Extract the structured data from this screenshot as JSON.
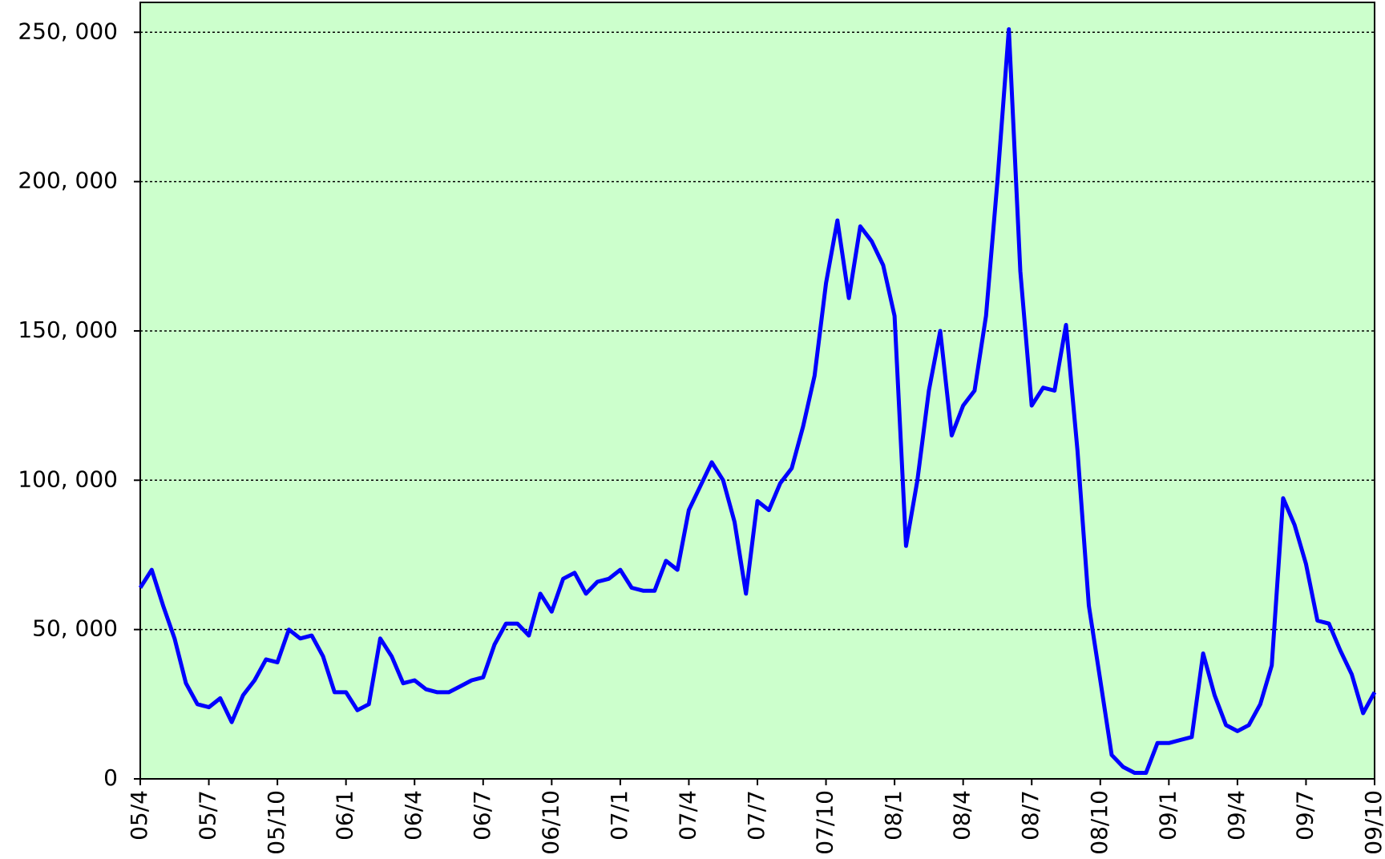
{
  "chart_data": {
    "type": "line",
    "categories": [
      "05/4",
      null,
      null,
      null,
      null,
      null,
      "05/7",
      null,
      null,
      null,
      null,
      null,
      "05/10",
      null,
      null,
      null,
      null,
      null,
      "06/1",
      null,
      null,
      null,
      null,
      null,
      "06/4",
      null,
      null,
      null,
      null,
      null,
      "06/7",
      null,
      null,
      null,
      null,
      null,
      "06/10",
      null,
      null,
      null,
      null,
      null,
      "07/1",
      null,
      null,
      null,
      null,
      null,
      "07/4",
      null,
      null,
      null,
      null,
      null,
      "07/7",
      null,
      null,
      null,
      null,
      null,
      "07/10",
      null,
      null,
      null,
      null,
      null,
      "08/1",
      null,
      null,
      null,
      null,
      null,
      "08/4",
      null,
      null,
      null,
      null,
      null,
      "08/7",
      null,
      null,
      null,
      null,
      null,
      "08/10",
      null,
      null,
      null,
      null,
      null,
      "09/1",
      null,
      null,
      null,
      null,
      null,
      "09/4",
      null,
      null,
      null,
      null,
      null,
      "09/7",
      null,
      null,
      null,
      null,
      null,
      "09/10"
    ],
    "series": [
      {
        "color": "#0000ff",
        "values": [
          64000,
          70000,
          58000,
          47000,
          32000,
          25000,
          24000,
          27000,
          19000,
          28000,
          33000,
          40000,
          39000,
          50000,
          47000,
          48000,
          41000,
          29000,
          29000,
          23000,
          25000,
          47000,
          41000,
          32000,
          33000,
          30000,
          29000,
          29000,
          31000,
          33000,
          34000,
          45000,
          52000,
          52000,
          48000,
          62000,
          56000,
          67000,
          69000,
          62000,
          66000,
          67000,
          70000,
          64000,
          63000,
          63000,
          73000,
          70000,
          90000,
          98000,
          106000,
          100000,
          86000,
          62000,
          93000,
          90000,
          99000,
          104000,
          118000,
          135000,
          166000,
          187000,
          161000,
          185000,
          180000,
          172000,
          155000,
          78000,
          100000,
          130000,
          150000,
          115000,
          125000,
          130000,
          155000,
          200000,
          251000,
          170000,
          125000,
          131000,
          130000,
          152000,
          110000,
          58000,
          33000,
          8000,
          4000,
          2000,
          2000,
          12000,
          12000,
          13000,
          14000,
          42000,
          28000,
          18000,
          16000,
          18000,
          25000,
          38000,
          94000,
          85000,
          72000,
          53000,
          52000,
          43000,
          35000,
          22000,
          29000
        ]
      }
    ],
    "ylim": [
      0,
      260000
    ],
    "yticks": [
      0,
      {
        "value": 50000,
        "label": "50, 000"
      },
      {
        "value": 100000,
        "label": "100, 000"
      },
      {
        "value": 150000,
        "label": "150, 000"
      },
      {
        "value": 200000,
        "label": "200, 000"
      },
      {
        "value": 250000,
        "label": "250, 000"
      }
    ],
    "grid": true,
    "background": "#ccffcc"
  }
}
